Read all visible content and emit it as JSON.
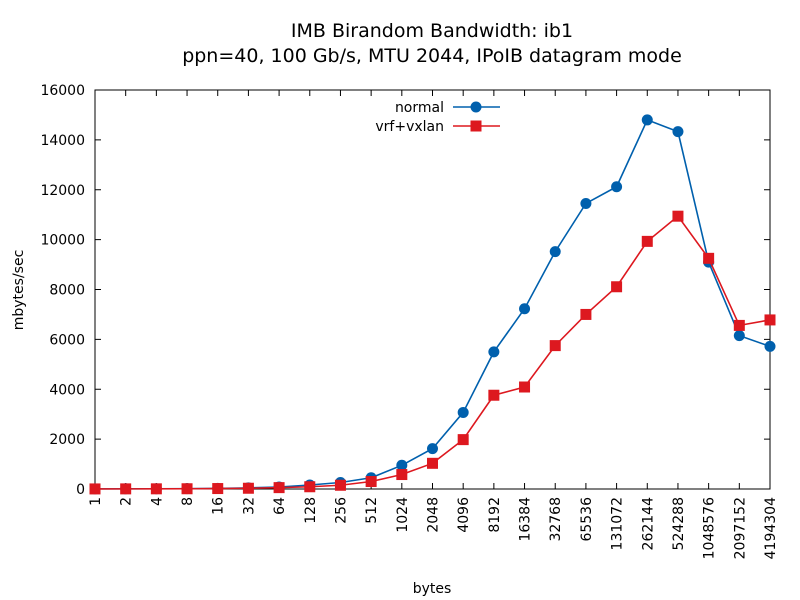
{
  "chart_data": {
    "type": "line",
    "title": "IMB Birandom Bandwidth: ib1",
    "subtitle": "ppn=40, 100 Gb/s, MTU 2044, IPoIB datagram mode",
    "xlabel": "bytes",
    "ylabel": "mbytes/sec",
    "ylim": [
      0,
      16000
    ],
    "yticks": [
      "0",
      "2000",
      "4000",
      "6000",
      "8000",
      "10000",
      "12000",
      "14000",
      "16000"
    ],
    "categories": [
      "1",
      "2",
      "4",
      "8",
      "16",
      "32",
      "64",
      "128",
      "256",
      "512",
      "1024",
      "2048",
      "4096",
      "8192",
      "16384",
      "32768",
      "65536",
      "131072",
      "262144",
      "524288",
      "1048576",
      "2097152",
      "4194304"
    ],
    "grid": false,
    "legend_position": "top-center",
    "series": [
      {
        "name": "normal",
        "color": "#0060ad",
        "marker": "circle",
        "values": [
          5,
          8,
          10,
          15,
          25,
          45,
          80,
          160,
          260,
          450,
          950,
          1620,
          3070,
          5500,
          7230,
          9520,
          11450,
          12120,
          14800,
          14330,
          9100,
          6150,
          5720
        ]
      },
      {
        "name": "vrf+vxlan",
        "color": "#dd181f",
        "marker": "square",
        "values": [
          3,
          5,
          7,
          10,
          18,
          30,
          55,
          90,
          150,
          300,
          580,
          1030,
          1980,
          3760,
          4090,
          5750,
          7000,
          8110,
          9930,
          10940,
          9250,
          6560,
          6780
        ]
      }
    ]
  }
}
